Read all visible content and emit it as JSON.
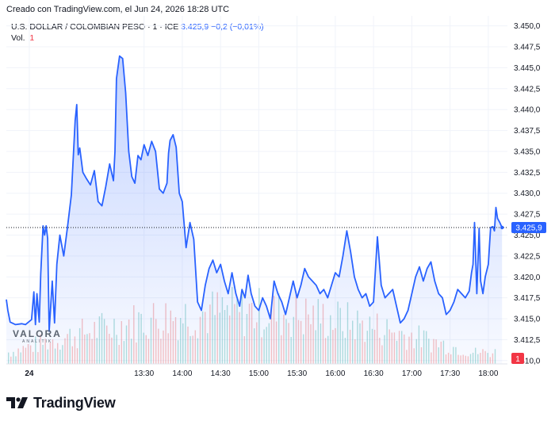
{
  "header": {
    "caption": "Creado con TradingView.com, el Jun 24, 2026 18:28 UTC"
  },
  "legend": {
    "symbol": "U.S. DOLLAR / COLOMBIAN PESO · 1 · ICE",
    "last": "3.425,9",
    "change": "−0,2 (−0,01%)",
    "vol_label": "Vol.",
    "vol_value": "1"
  },
  "price_badge": "3.425,9",
  "vol_badge": "1",
  "watermark": {
    "line1": "VALORA",
    "line2": "ANALITIK"
  },
  "footer": {
    "brand": "TradingView"
  },
  "colors": {
    "line": "#2962ff",
    "up_volume": "#26a69a",
    "down_volume": "#ef5350",
    "badge": "#2962ff",
    "vol_badge": "#f23645"
  },
  "chart_data": {
    "type": "area",
    "y_tick_labels": [
      "3.450,0",
      "3.447,5",
      "3.445,0",
      "3.442,5",
      "3.440,0",
      "3.437,5",
      "3.435,0",
      "3.432,5",
      "3.430,0",
      "3.427,5",
      "3.425,0",
      "3.422,5",
      "3.420,0",
      "3.417,5",
      "3.415,0",
      "3.412,5",
      "3.410,0"
    ],
    "y_ticks": [
      3450,
      3447.5,
      3445,
      3442.5,
      3440,
      3437.5,
      3435,
      3432.5,
      3430,
      3427.5,
      3425,
      3422.5,
      3420,
      3417.5,
      3415,
      3412.5,
      3410
    ],
    "ylim": [
      3409.6,
      3451.2
    ],
    "x_tick_labels": [
      "24",
      "13:30",
      "14:00",
      "14:30",
      "15:00",
      "15:30",
      "16:00",
      "16:30",
      "17:00",
      "17:30",
      "18:00"
    ],
    "x_ticks": [
      12.0,
      13.5,
      14.0,
      14.5,
      15.0,
      15.5,
      16.0,
      16.5,
      17.0,
      17.5,
      18.0
    ],
    "xlim": [
      11.7,
      18.25
    ],
    "last_value": 3425.9,
    "x": [
      11.7,
      11.72,
      11.75,
      11.82,
      11.9,
      11.95,
      12.03,
      12.06,
      12.08,
      12.1,
      12.13,
      12.15,
      12.18,
      12.2,
      12.22,
      12.24,
      12.26,
      12.3,
      12.33,
      12.36,
      12.4,
      12.45,
      12.5,
      12.55,
      12.6,
      12.62,
      12.64,
      12.66,
      12.7,
      12.75,
      12.8,
      12.85,
      12.9,
      12.95,
      13.0,
      13.05,
      13.1,
      13.12,
      13.14,
      13.18,
      13.22,
      13.26,
      13.3,
      13.34,
      13.38,
      13.42,
      13.46,
      13.5,
      13.55,
      13.6,
      13.65,
      13.7,
      13.75,
      13.8,
      13.82,
      13.84,
      13.88,
      13.92,
      13.96,
      14.0,
      14.05,
      14.1,
      14.15,
      14.2,
      14.25,
      14.3,
      14.35,
      14.4,
      14.45,
      14.5,
      14.55,
      14.6,
      14.65,
      14.7,
      14.75,
      14.78,
      14.82,
      14.86,
      14.9,
      14.95,
      15.0,
      15.05,
      15.1,
      15.15,
      15.2,
      15.25,
      15.3,
      15.35,
      15.4,
      15.45,
      15.5,
      15.55,
      15.6,
      15.65,
      15.7,
      15.75,
      15.8,
      15.85,
      15.9,
      15.95,
      16.0,
      16.05,
      16.1,
      16.15,
      16.2,
      16.25,
      16.3,
      16.35,
      16.4,
      16.45,
      16.5,
      16.55,
      16.6,
      16.65,
      16.7,
      16.75,
      16.8,
      16.85,
      16.9,
      16.95,
      17.0,
      17.05,
      17.1,
      17.15,
      17.2,
      17.25,
      17.3,
      17.35,
      17.4,
      17.45,
      17.5,
      17.55,
      17.6,
      17.65,
      17.7,
      17.75,
      17.78,
      17.8,
      17.82,
      17.85,
      17.88,
      17.9,
      17.93,
      17.96,
      18.0,
      18.03,
      18.06,
      18.08,
      18.1,
      18.12,
      18.15,
      18.18
    ],
    "y": [
      3417.3,
      3416.0,
      3414.6,
      3414.3,
      3414.4,
      3414.3,
      3414.9,
      3418.2,
      3414.3,
      3418.0,
      3414.6,
      3420.4,
      3426.1,
      3425.0,
      3426.1,
      3424.6,
      3413.5,
      3419.5,
      3414.5,
      3421.5,
      3425.0,
      3422.5,
      3426.0,
      3429.8,
      3438.7,
      3440.6,
      3434.6,
      3435.4,
      3432.5,
      3431.7,
      3431.0,
      3432.7,
      3429.0,
      3428.5,
      3430.8,
      3433.5,
      3431.5,
      3435.0,
      3443.7,
      3446.4,
      3446.1,
      3442.0,
      3435.0,
      3432.0,
      3431.2,
      3434.5,
      3434.0,
      3435.8,
      3434.5,
      3436.2,
      3435.0,
      3430.5,
      3430.0,
      3431.2,
      3434.8,
      3436.3,
      3437.0,
      3435.5,
      3430.0,
      3429.0,
      3423.5,
      3426.5,
      3424.5,
      3417.0,
      3416.0,
      3419.0,
      3421.0,
      3422.0,
      3420.5,
      3421.5,
      3419.5,
      3418.0,
      3420.5,
      3418.0,
      3416.5,
      3418.5,
      3417.5,
      3420.2,
      3418.0,
      3416.5,
      3416.0,
      3417.5,
      3416.5,
      3415.0,
      3419.5,
      3418.0,
      3417.0,
      3415.5,
      3417.5,
      3419.5,
      3417.5,
      3419.0,
      3421.0,
      3420.0,
      3419.5,
      3419.0,
      3418.0,
      3418.5,
      3417.5,
      3419.0,
      3420.5,
      3420.0,
      3422.5,
      3425.5,
      3423.0,
      3420.0,
      3418.5,
      3417.5,
      3418.0,
      3416.5,
      3417.0,
      3424.8,
      3419.0,
      3417.5,
      3418.0,
      3418.5,
      3416.5,
      3414.5,
      3415.0,
      3416.0,
      3418.0,
      3420.0,
      3421.2,
      3419.5,
      3421.0,
      3421.8,
      3419.5,
      3418.0,
      3417.5,
      3415.5,
      3416.0,
      3417.0,
      3418.5,
      3418.0,
      3417.5,
      3418.3,
      3420.5,
      3421.5,
      3426.5,
      3418.0,
      3425.8,
      3419.5,
      3418.0,
      3420.0,
      3421.5,
      3425.9,
      3426.0,
      3425.5,
      3428.3,
      3427.0,
      3426.5,
      3425.9
    ]
  }
}
